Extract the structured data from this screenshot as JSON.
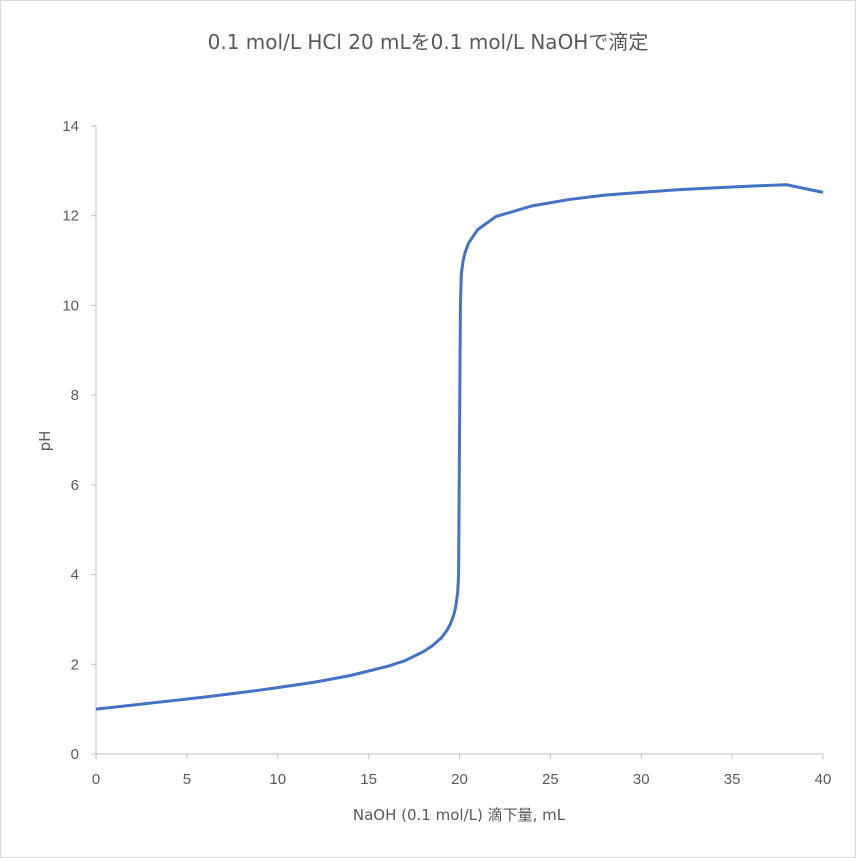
{
  "chart_data": {
    "type": "line",
    "title": "0.1 mol/L HCl 20 mLを0.1 mol/L NaOHで滴定",
    "xlabel": "NaOH (0.1 mol/L) 滴下量, mL",
    "ylabel": "pH",
    "xlim": [
      0,
      40
    ],
    "ylim": [
      0,
      14
    ],
    "xticks": [
      0,
      5,
      10,
      15,
      20,
      25,
      30,
      35,
      40
    ],
    "yticks": [
      0,
      2,
      4,
      6,
      8,
      10,
      12,
      14
    ],
    "grid": false,
    "legend": "none",
    "line_color": "#4472c4",
    "series": [
      {
        "x": [
          0,
          2,
          4,
          6,
          8,
          10,
          12,
          14,
          16,
          17,
          18,
          18.5,
          19,
          19.3,
          19.5,
          19.7,
          19.8,
          19.9,
          19.95,
          20,
          20.05,
          20.1,
          20.2,
          20.3,
          20.5,
          21,
          22,
          24,
          26,
          28,
          30,
          32,
          34,
          36,
          38,
          40
        ],
        "y": [
          1.0,
          1.09,
          1.18,
          1.27,
          1.37,
          1.48,
          1.6,
          1.75,
          1.95,
          2.08,
          2.28,
          2.41,
          2.59,
          2.75,
          2.9,
          3.12,
          3.3,
          3.6,
          4.0,
          7.0,
          10.0,
          10.7,
          11.0,
          11.17,
          11.39,
          11.69,
          11.98,
          12.22,
          12.36,
          12.46,
          12.52,
          12.58,
          12.62,
          12.66,
          12.69,
          12.52
        ]
      }
    ]
  }
}
